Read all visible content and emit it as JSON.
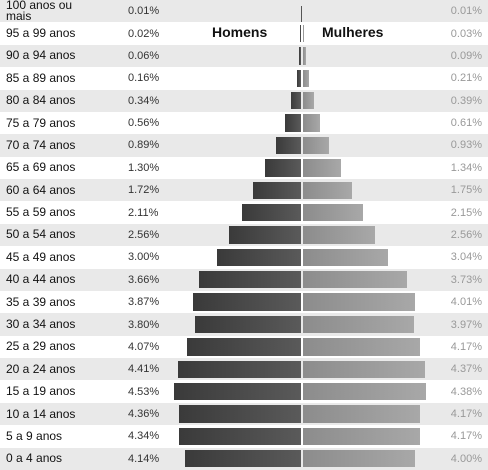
{
  "chart_data": {
    "type": "pyramid",
    "categories": [
      "100 anos ou mais",
      "95 a 99 anos",
      "90 a 94 anos",
      "85 a 89 anos",
      "80 a 84 anos",
      "75 a 79 anos",
      "70 a 74 anos",
      "65 a 69 anos",
      "60 a 64 anos",
      "55 a 59 anos",
      "50 a 54 anos",
      "45 a 49 anos",
      "40 a 44 anos",
      "35 a 39 anos",
      "30 a 34 anos",
      "25 a 29 anos",
      "20 a 24 anos",
      "15 a 19 anos",
      "10 a 14 anos",
      "5 a 9 anos",
      "0 a 4 anos"
    ],
    "series": [
      {
        "name": "Homens",
        "color": "#3a3a3a",
        "values": [
          0.01,
          0.02,
          0.06,
          0.16,
          0.34,
          0.56,
          0.89,
          1.3,
          1.72,
          2.11,
          2.56,
          3.0,
          3.66,
          3.87,
          3.8,
          4.07,
          4.41,
          4.53,
          4.36,
          4.34,
          4.14
        ],
        "value_labels": [
          "0.01%",
          "0.02%",
          "0.06%",
          "0.16%",
          "0.34%",
          "0.56%",
          "0.89%",
          "1.30%",
          "1.72%",
          "2.11%",
          "2.56%",
          "3.00%",
          "3.66%",
          "3.87%",
          "3.80%",
          "4.07%",
          "4.41%",
          "4.53%",
          "4.36%",
          "4.34%",
          "4.14%"
        ]
      },
      {
        "name": "Mulheres",
        "color": "#8c8c8c",
        "values": [
          0.01,
          0.03,
          0.09,
          0.21,
          0.39,
          0.61,
          0.93,
          1.34,
          1.75,
          2.15,
          2.56,
          3.04,
          3.73,
          4.01,
          3.97,
          4.17,
          4.37,
          4.38,
          4.17,
          4.17,
          4.0
        ],
        "value_labels": [
          "0.01%",
          "0.03%",
          "0.09%",
          "0.21%",
          "0.39%",
          "0.61%",
          "0.93%",
          "1.34%",
          "1.75%",
          "2.15%",
          "2.56%",
          "3.04%",
          "3.73%",
          "4.01%",
          "3.97%",
          "4.17%",
          "4.37%",
          "4.38%",
          "4.17%",
          "4.17%",
          "4.00%"
        ]
      }
    ]
  }
}
